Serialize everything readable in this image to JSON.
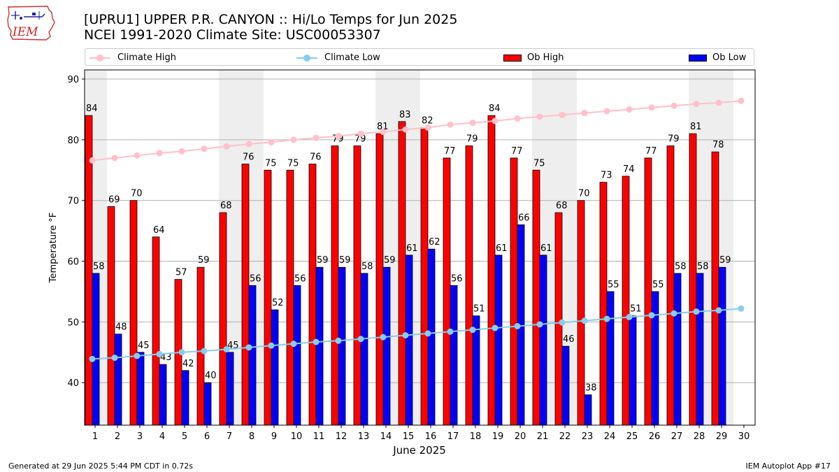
{
  "header": {
    "title_line1": "[UPRU1] UPPER P.R. CANYON :: Hi/Lo Temps for Jun 2025",
    "title_line2": "NCEI 1991-2020 Climate Site: USC00053307",
    "logo_text": "IEM"
  },
  "footer": {
    "left": "Generated at 29 Jun 2025 5:44 PM CDT in 0.72s",
    "right": "IEM Autoplot App #17"
  },
  "legend": {
    "climate_high": "Climate High",
    "climate_low": "Climate Low",
    "ob_high": "Ob High",
    "ob_low": "Ob Low"
  },
  "colors": {
    "ob_high": "#ff0000",
    "ob_low": "#0000ff",
    "climate_high": "#ffc0cb",
    "climate_low": "#87ceeb",
    "weekend_shade": "#eeeeee",
    "grid": "#b0b0b0"
  },
  "chart_data": {
    "type": "bar",
    "title": "[UPRU1] UPPER P.R. CANYON :: Hi/Lo Temps for Jun 2025",
    "subtitle": "NCEI 1991-2020 Climate Site: USC00053307",
    "xlabel": "June 2025",
    "ylabel": "Temperature °F",
    "ylim": [
      33,
      91.5
    ],
    "yticks": [
      40,
      50,
      60,
      70,
      80,
      90
    ],
    "grid": true,
    "legend_position": "top",
    "categories": [
      1,
      2,
      3,
      4,
      5,
      6,
      7,
      8,
      9,
      10,
      11,
      12,
      13,
      14,
      15,
      16,
      17,
      18,
      19,
      20,
      21,
      22,
      23,
      24,
      25,
      26,
      27,
      28,
      29,
      30
    ],
    "shaded_days": [
      1,
      7,
      8,
      14,
      15,
      21,
      22,
      28,
      29
    ],
    "series": [
      {
        "name": "Ob High",
        "kind": "bar",
        "values": [
          84,
          69,
          70,
          64,
          57,
          59,
          68,
          76,
          75,
          75,
          76,
          79,
          79,
          81,
          83,
          82,
          77,
          79,
          84,
          77,
          75,
          68,
          70,
          73,
          74,
          77,
          79,
          81,
          78,
          null
        ]
      },
      {
        "name": "Ob Low",
        "kind": "bar",
        "values": [
          58,
          48,
          45,
          43,
          42,
          40,
          45,
          56,
          52,
          56,
          59,
          59,
          58,
          59,
          61,
          62,
          56,
          51,
          61,
          66,
          61,
          46,
          38,
          55,
          51,
          55,
          58,
          58,
          59,
          null
        ]
      },
      {
        "name": "Climate High",
        "kind": "line",
        "values": [
          76.6,
          77.0,
          77.4,
          77.8,
          78.1,
          78.5,
          78.9,
          79.3,
          79.6,
          80.0,
          80.3,
          80.6,
          81.0,
          81.3,
          81.7,
          82.0,
          82.5,
          82.8,
          83.1,
          83.5,
          83.8,
          84.1,
          84.4,
          84.7,
          85.0,
          85.3,
          85.6,
          85.9,
          86.1,
          86.4
        ]
      },
      {
        "name": "Climate Low",
        "kind": "line",
        "values": [
          43.9,
          44.1,
          44.4,
          44.7,
          45.0,
          45.2,
          45.5,
          45.8,
          46.1,
          46.4,
          46.7,
          46.9,
          47.2,
          47.5,
          47.8,
          48.1,
          48.4,
          48.7,
          49.0,
          49.3,
          49.6,
          49.9,
          50.2,
          50.5,
          50.8,
          51.1,
          51.4,
          51.7,
          51.9,
          52.2
        ]
      }
    ]
  }
}
